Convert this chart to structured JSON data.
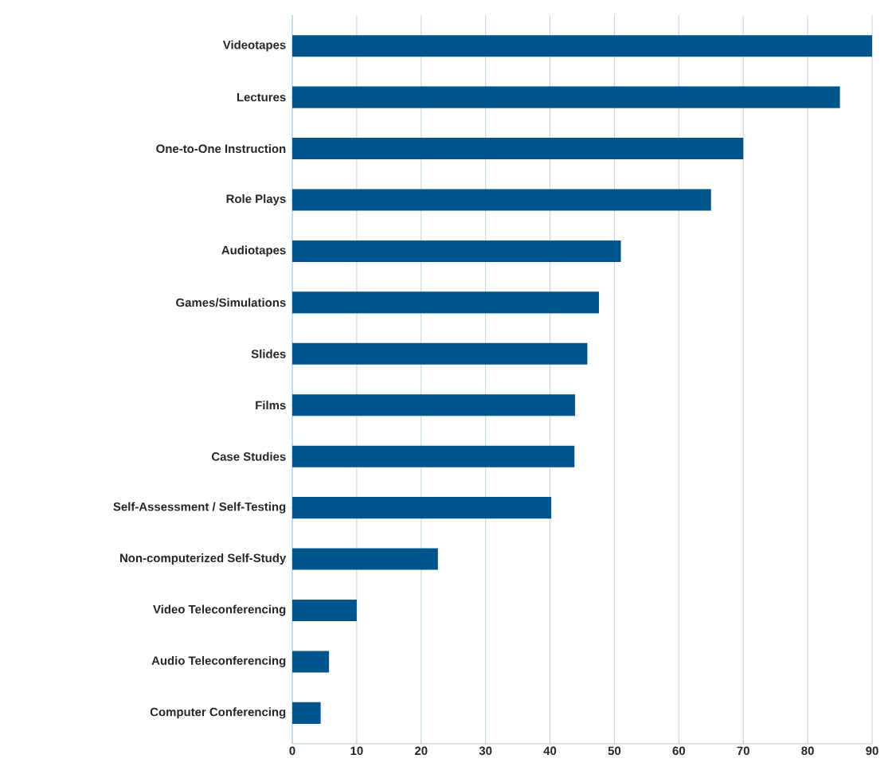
{
  "chart_data": {
    "type": "bar",
    "orientation": "horizontal",
    "categories": [
      "Videotapes",
      "Lectures",
      "One-to-One Instruction",
      "Role Plays",
      "Audiotapes",
      "Games/Simulations",
      "Slides",
      "Films",
      "Case Studies",
      "Self-Assessment / Self-Testing",
      "Non-computerized Self-Study",
      "Video Teleconferencing",
      "Audio Teleconferencing",
      "Computer Conferencing"
    ],
    "values": [
      90,
      85,
      70,
      65,
      51,
      47.6,
      45.8,
      43.9,
      43.8,
      40.2,
      22.6,
      10,
      5.7,
      4.4
    ],
    "color": "#00568c",
    "xlim": [
      0,
      90
    ],
    "xticks": [
      0,
      10,
      20,
      30,
      40,
      50,
      60,
      70,
      80,
      90
    ],
    "grid": "x"
  }
}
